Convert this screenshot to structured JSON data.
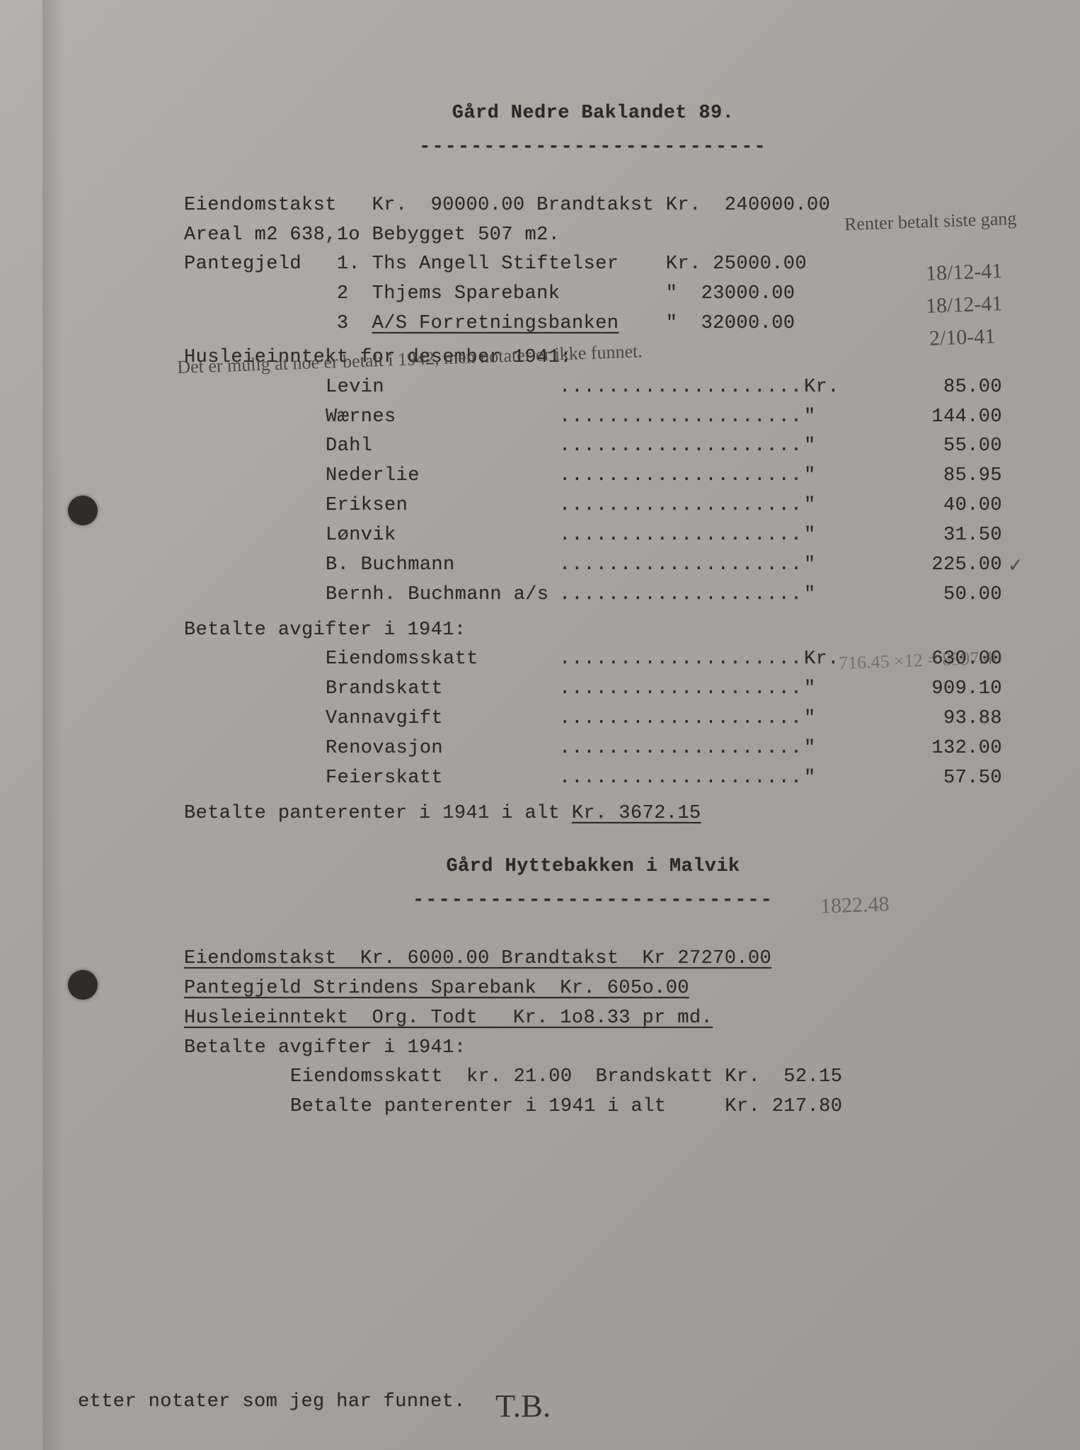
{
  "property1": {
    "title": "Gård Nedre Baklandet 89.",
    "dashline": "---------------------------",
    "assessment": {
      "eiendomstakst_label": "Eiendomstakst",
      "eiendomstakst_value": "Kr.  90000.00",
      "brandtakst_label": "Brandtakst",
      "brandtakst_value": "Kr.  240000.00"
    },
    "areal_line": "Areal m2 638,1o Bebygget 507 m2.",
    "pantegjeld_label": "Pantegjeld",
    "liens": [
      {
        "idx": "1.",
        "name": "Ths Angell Stiftelser",
        "cur": "Kr.",
        "amount": "25000.00"
      },
      {
        "idx": "2",
        "name": "Thjems Sparebank",
        "cur": "\"",
        "amount": "23000.00"
      },
      {
        "idx": "3",
        "name": "A/S Forretningsbanken",
        "cur": "\"",
        "amount": "32000.00"
      }
    ],
    "rent_header": "Husleieinntekt for desember 1941:",
    "rents": [
      {
        "name": "Levin",
        "cur": "Kr.",
        "amount": "85.00"
      },
      {
        "name": "Wærnes",
        "cur": "\"",
        "amount": "144.00"
      },
      {
        "name": "Dahl",
        "cur": "\"",
        "amount": "55.00"
      },
      {
        "name": "Nederlie",
        "cur": "\"",
        "amount": "85.95"
      },
      {
        "name": "Eriksen",
        "cur": "\"",
        "amount": "40.00"
      },
      {
        "name": "Lønvik",
        "cur": "\"",
        "amount": "31.50"
      },
      {
        "name": "B. Buchmann",
        "cur": "\"",
        "amount": "225.00"
      },
      {
        "name": "Bernh. Buchmann a/s",
        "cur": "\"",
        "amount": "50.00"
      }
    ],
    "fees_header": "Betalte avgifter i 1941:",
    "fees": [
      {
        "name": "Eiendomsskatt",
        "cur": "Kr.",
        "amount": "630.00"
      },
      {
        "name": "Brandskatt",
        "cur": "\"",
        "amount": "909.10"
      },
      {
        "name": "Vannavgift",
        "cur": "\"",
        "amount": "93.88"
      },
      {
        "name": "Renovasjon",
        "cur": "\"",
        "amount": "132.00"
      },
      {
        "name": "Feierskatt",
        "cur": "\"",
        "amount": "57.50"
      }
    ],
    "interest_line_pre": "Betalte panterenter i 1941 i alt ",
    "interest_line_val": "Kr. 3672.15"
  },
  "property2": {
    "title": "Gård Hyttebakken i Malvik",
    "dashline": "----------------------------",
    "line1": "Eiendomstakst  Kr. 6000.00 Brandtakst  Kr 27270.00",
    "line2": "Pantegjeld Strindens Sparebank  Kr. 605o.00",
    "line3": "Husleieinntekt  Org. Todt   Kr. 1o8.33 pr md.",
    "fees_header": "Betalte avgifter i 1941:",
    "fees_line": "Eiendomsskatt  kr. 21.00  Brandskatt Kr.  52.15",
    "interest_line": "Betalte panterenter i 1941 i alt     Kr. 217.80"
  },
  "footer_note": "etter notater som jeg har funnet.",
  "footer_initials": "T.B.",
  "annotations": {
    "top_note": "Renter betalt\nsiste gang",
    "date1": "18/12-41",
    "date2": "18/12-41",
    "date3": "2/10-41",
    "mid_note": "Det er mulig at noe er betalt i 1942, men notater er ikke funnet.",
    "rent_check": "✓",
    "pencil_sum": "716.45  ×12 = 8597.40",
    "interest_pencil": "1822.48"
  },
  "style": {
    "bg": "#a8a6a0",
    "ink": "#2a2a2a",
    "font_family": "Courier New",
    "font_size_pt": 20,
    "annot_color": "#3a3a3a"
  }
}
